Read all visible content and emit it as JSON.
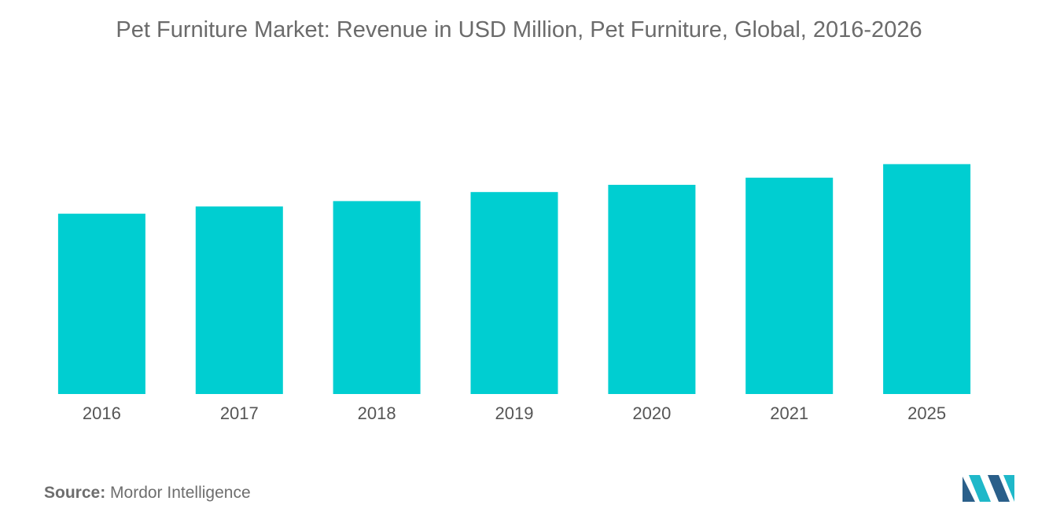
{
  "title": "Pet Furniture Market: Revenue in USD Million, Pet Furniture, Global,  2016-2026",
  "source": {
    "label": "Source:",
    "text": "Mordor Intelligence"
  },
  "colors": {
    "bar": "#00CED1",
    "logo_dark": "#2A5F8A",
    "logo_light": "#1FB8C9"
  },
  "logo": {
    "icon": "mordor-intelligence-logo"
  },
  "chart_data": {
    "type": "bar",
    "categories": [
      "2016",
      "2017",
      "2018",
      "2019",
      "2020",
      "2021",
      "2025"
    ],
    "values": [
      100,
      104,
      107,
      112,
      116,
      120,
      127.5
    ],
    "ylim": [
      0,
      140
    ],
    "xlabel": "",
    "ylabel": "",
    "grid": false,
    "legend": "none"
  }
}
